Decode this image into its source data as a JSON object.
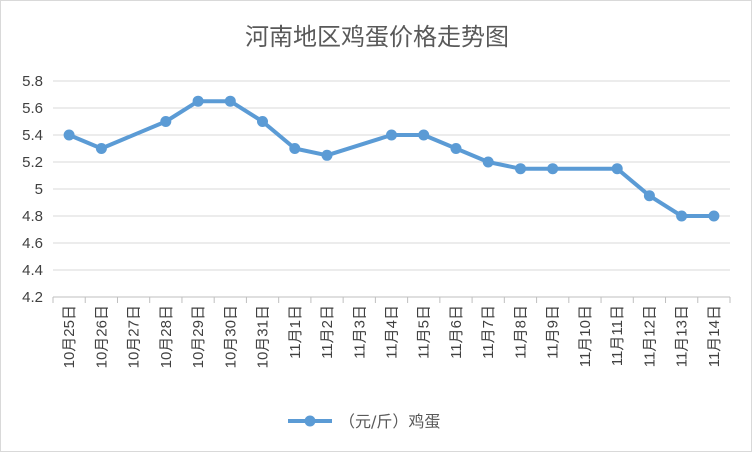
{
  "chart_data": {
    "type": "line",
    "title": "河南地区鸡蛋价格走势图",
    "categories": [
      "10月25日",
      "10月26日",
      "10月27日",
      "10月28日",
      "10月29日",
      "10月30日",
      "10月31日",
      "11月1日",
      "11月2日",
      "11月3日",
      "11月4日",
      "11月5日",
      "11月6日",
      "11月7日",
      "11月8日",
      "11月9日",
      "11月10日",
      "11月11日",
      "11月12日",
      "11月13日",
      "11月14日"
    ],
    "series": [
      {
        "name": "（元/斤）鸡蛋",
        "values": [
          5.4,
          5.3,
          null,
          5.5,
          5.65,
          5.65,
          5.5,
          5.3,
          5.25,
          null,
          5.4,
          5.4,
          5.3,
          5.2,
          5.15,
          5.15,
          null,
          5.15,
          4.95,
          4.8,
          4.8
        ]
      }
    ],
    "xlabel": "",
    "ylabel": "",
    "ylim": [
      4.2,
      5.8
    ],
    "yticks": [
      4.2,
      4.4,
      4.6,
      4.8,
      5,
      5.2,
      5.4,
      5.6,
      5.8
    ],
    "connect_gaps": true,
    "grid": "horizontal",
    "legend_position": "bottom",
    "colors": {
      "series": "#5b9bd5",
      "grid": "#d9d9d9",
      "axis": "#bfbfbf",
      "text": "#404040"
    }
  }
}
